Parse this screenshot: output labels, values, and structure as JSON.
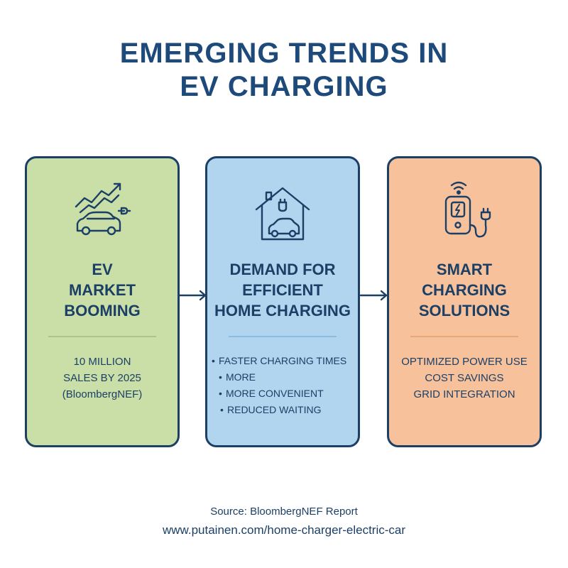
{
  "title": {
    "line1": "EMERGING TRENDS IN",
    "line2": "EV CHARGING"
  },
  "cards": [
    {
      "icon": "growth-chart-car-plug-icon",
      "heading": [
        "EV",
        "MARKET",
        "BOOMING"
      ],
      "body": [
        "10 MILLION",
        "SALES BY 2025",
        "(BloombergNEF)"
      ],
      "color": "#c9dfa7"
    },
    {
      "icon": "house-car-plug-icon",
      "heading": [
        "DEMAND FOR",
        "EFFICIENT",
        "HOME CHARGING"
      ],
      "bullets": [
        "FASTER CHARGING TIMES",
        "MORE",
        "MORE CONVENIENT",
        "REDUCED WAITING"
      ],
      "color": "#b1d5ef"
    },
    {
      "icon": "smart-charger-wifi-icon",
      "heading": [
        "SMART",
        "CHARGING",
        "SOLUTIONS"
      ],
      "body": [
        "OPTIMIZED POWER USE",
        "COST SAVINGS",
        "GRID INTEGRATION"
      ],
      "color": "#f7c29b"
    }
  ],
  "footer": {
    "source": "Source: BloombergNEF Report",
    "url": "www.putainen.com/home-charger-electric-car"
  },
  "colors": {
    "title": "#1d4a7a",
    "outline": "#1c3f66"
  }
}
